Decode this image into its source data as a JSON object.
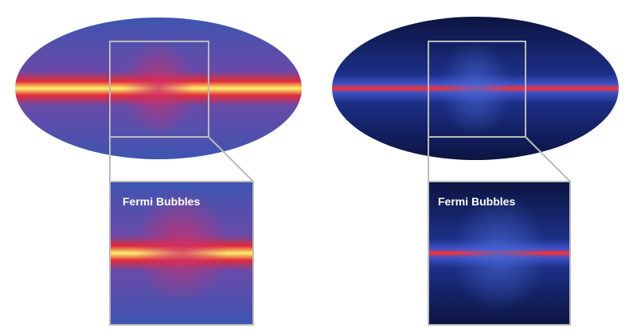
{
  "panels": [
    {
      "label": "Fermi Bubbles"
    },
    {
      "label": "Fermi Bubbles"
    }
  ]
}
